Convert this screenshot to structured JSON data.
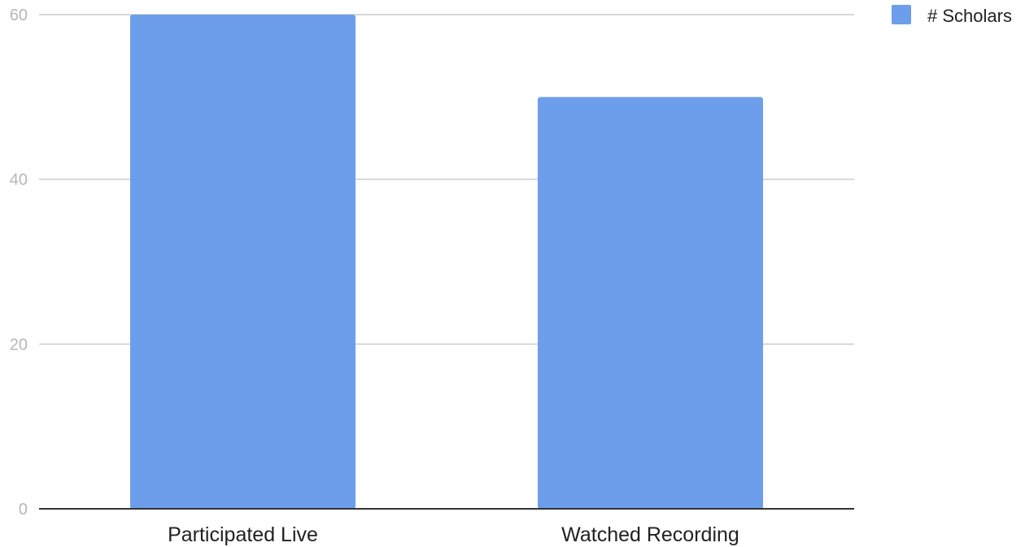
{
  "chart_data": {
    "type": "bar",
    "title": "",
    "xlabel": "",
    "ylabel": "",
    "categories": [
      "Participated Live",
      "Watched Recording"
    ],
    "series": [
      {
        "name": "# Scholars",
        "values": [
          60,
          50
        ],
        "color": "#6d9eeb"
      }
    ],
    "ylim": [
      0,
      60
    ],
    "yticks": [
      0,
      20,
      40,
      60
    ],
    "ytick_labels": [
      "0",
      "20",
      "40",
      "60"
    ],
    "grid": true,
    "legend": {
      "position": "top-right"
    },
    "colors": {
      "gridline": "#cccccc",
      "axis": "#333333",
      "tick_text": "#b7b7b7",
      "label_text": "#222222"
    }
  }
}
